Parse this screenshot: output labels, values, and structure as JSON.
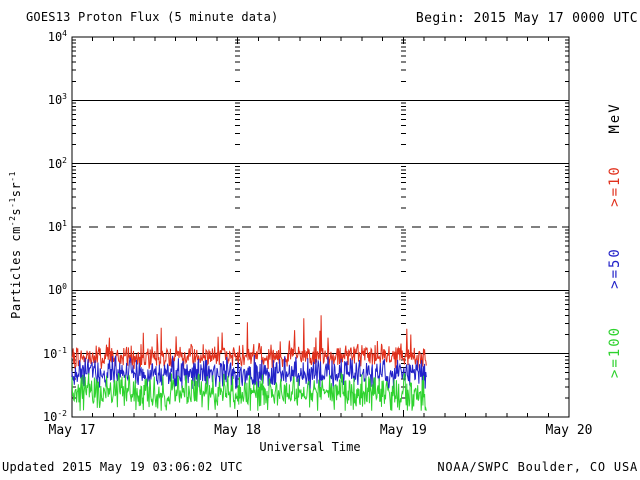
{
  "page": {
    "background": "#ffffff"
  },
  "header": {
    "title": "GOES13 Proton Flux (5 minute data)",
    "begin_label": "Begin: 2015 May 17 0000 UTC"
  },
  "y_axis": {
    "label_parts": {
      "base1": "Particles cm",
      "sup1": "-2",
      "base2": "s",
      "sup2": "-1",
      "base3": "sr",
      "sup3": "-1"
    }
  },
  "right_axis": {
    "unit_label": "MeV",
    "unit_color": "#000000"
  },
  "footer": {
    "updated": "Updated 2015 May 19 03:06:02 UTC",
    "source": "NOAA/SWPC Boulder, CO USA"
  },
  "chart_data": {
    "type": "line",
    "title": "GOES13 Proton Flux (5 minute data)",
    "xlabel": "Universal Time",
    "ylabel": "Particles cm-2 s-1 sr-1",
    "y_scale": "log",
    "ylim": [
      0.01,
      10000
    ],
    "y_tick_exponents": [
      4,
      3,
      2,
      1,
      0,
      -1,
      -2
    ],
    "x_tick_labels": [
      "May 17",
      "May 18",
      "May 19",
      "May 20"
    ],
    "x_minor_tick_hours": 3,
    "grid_decade_lines": [
      1000,
      100,
      10,
      1,
      0.1
    ],
    "dashed_threshold_value": 10,
    "begin_time": "2015 May 17 0000 UTC",
    "end_time": "2015 May 19 0305 UTC",
    "sample_minutes": 5,
    "data_span_days": 2.14,
    "legend_position": "right",
    "series": [
      {
        "label": ">=10",
        "name": ">=10 MeV proton flux",
        "color": "#e1301c",
        "typical_flux": 0.1,
        "flux_min": 0.06,
        "flux_max": 0.4,
        "log10_center": -1.04,
        "log10_jitter": 0.16,
        "log10_min": -1.24,
        "spike_prob": 0.06,
        "spike_log10_max": 0.5
      },
      {
        "label": ">=50",
        "name": ">=50 MeV proton flux",
        "color": "#2222c8",
        "typical_flux": 0.05,
        "flux_min": 0.03,
        "flux_max": 0.08,
        "log10_center": -1.31,
        "log10_jitter": 0.21,
        "log10_min": -1.56,
        "spike_prob": 0,
        "spike_log10_max": 0
      },
      {
        "label": ">=100",
        "name": ">=100 MeV proton flux",
        "color": "#2ed22e",
        "typical_flux": 0.022,
        "flux_min": 0.013,
        "flux_max": 0.045,
        "log10_center": -1.62,
        "log10_jitter": 0.245,
        "log10_min": -1.9,
        "spike_prob": 0,
        "spike_log10_max": 0
      }
    ]
  }
}
